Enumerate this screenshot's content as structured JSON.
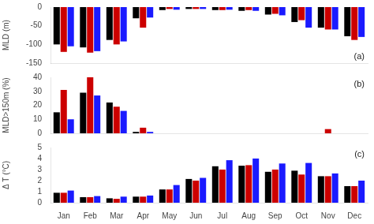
{
  "chart_data": [
    {
      "type": "bar",
      "categories": [
        "Jan",
        "Feb",
        "Mar",
        "Apr",
        "May",
        "Jun",
        "Jul",
        "Aug",
        "Sep",
        "Oct",
        "Nov",
        "Dec"
      ],
      "ylabel": "MLD (m)",
      "ylim": [
        -150,
        0
      ],
      "yticks": [
        0,
        -50,
        -100,
        -150
      ],
      "series": [
        {
          "color": "#000000",
          "values": [
            -100,
            -108,
            -88,
            -30,
            -8,
            -5,
            -8,
            -10,
            -20,
            -40,
            -55,
            -78
          ]
        },
        {
          "color": "#cc0000",
          "values": [
            -120,
            -122,
            -100,
            -55,
            -5,
            -5,
            -8,
            -8,
            -18,
            -35,
            -60,
            -88
          ]
        },
        {
          "color": "#1a1aff",
          "values": [
            -105,
            -118,
            -92,
            -28,
            -7,
            -5,
            -7,
            -10,
            -22,
            -55,
            -60,
            -80
          ]
        }
      ],
      "grid": false,
      "tick_labels": "y",
      "annotations": [
        "(a)"
      ]
    },
    {
      "type": "bar",
      "categories": [
        "Jan",
        "Feb",
        "Mar",
        "Apr",
        "May",
        "Jun",
        "Jul",
        "Aug",
        "Sep",
        "Oct",
        "Nov",
        "Dec"
      ],
      "ylabel": "MLD>150m (%)",
      "ylim": [
        0,
        40
      ],
      "yticks": [
        0,
        10,
        20,
        30,
        40
      ],
      "series": [
        {
          "color": "#000000",
          "values": [
            15,
            29,
            22,
            1,
            0,
            0,
            0,
            0,
            0,
            0,
            0,
            0
          ]
        },
        {
          "color": "#cc0000",
          "values": [
            31,
            40,
            19,
            4,
            0,
            0,
            0,
            0,
            0,
            0,
            3,
            0
          ]
        },
        {
          "color": "#1a1aff",
          "values": [
            10,
            27,
            16,
            1,
            0,
            0,
            0,
            0,
            0,
            0,
            0,
            0
          ]
        }
      ],
      "grid": false,
      "tick_labels": "y",
      "annotations": [
        "(b)"
      ]
    },
    {
      "type": "bar",
      "categories": [
        "Jan",
        "Feb",
        "Mar",
        "Apr",
        "May",
        "Jun",
        "Jul",
        "Aug",
        "Sep",
        "Oct",
        "Nov",
        "Dec"
      ],
      "ylabel": "Δ T (°C)",
      "ylim": [
        0,
        5
      ],
      "yticks": [
        0,
        1,
        2,
        3,
        4,
        5
      ],
      "series": [
        {
          "color": "#000000",
          "values": [
            0.9,
            0.5,
            0.4,
            0.55,
            1.2,
            2.15,
            3.3,
            3.35,
            2.8,
            2.9,
            2.4,
            1.5
          ]
        },
        {
          "color": "#cc0000",
          "values": [
            0.9,
            0.5,
            0.35,
            0.55,
            1.2,
            2.0,
            3.0,
            3.4,
            3.0,
            2.55,
            2.4,
            1.5
          ]
        },
        {
          "color": "#1a1aff",
          "values": [
            1.1,
            0.6,
            0.55,
            0.65,
            1.6,
            2.25,
            3.85,
            4.0,
            3.55,
            3.6,
            2.65,
            2.0
          ]
        }
      ],
      "grid": false,
      "annotations": [
        "(c)"
      ]
    }
  ]
}
